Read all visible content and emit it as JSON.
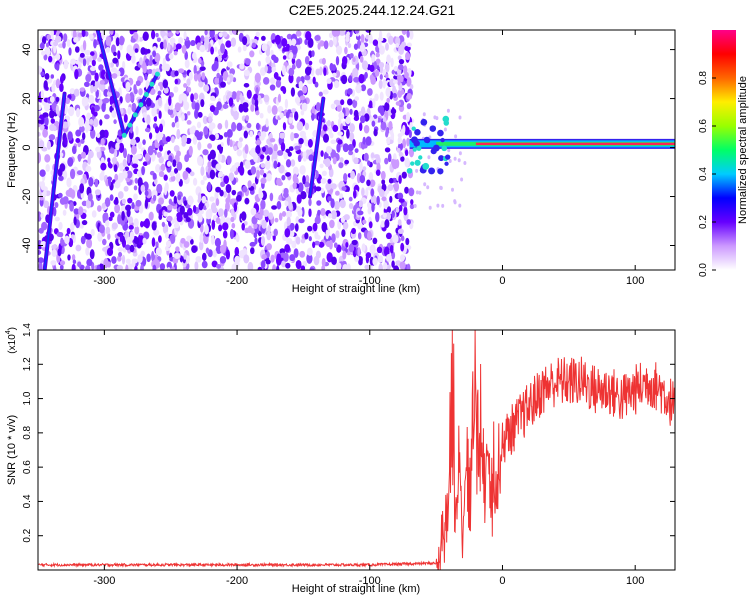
{
  "title": "C2E5.2025.244.12.24.G21",
  "chart_data": [
    {
      "type": "heatmap",
      "title": "C2E5.2025.244.12.24.G21",
      "xlabel": "Height of straight line (km)",
      "ylabel": "Frequency (Hz)",
      "xlim": [
        -350,
        130
      ],
      "ylim": [
        -50,
        48
      ],
      "xticks": [
        -300,
        -200,
        -100,
        0,
        100
      ],
      "yticks": [
        -40,
        -20,
        0,
        20,
        40
      ],
      "colorbar": {
        "label": "Normalized spectral amplitude",
        "range": [
          0,
          1
        ],
        "ticks": [
          "0.0",
          "0.2",
          "0.4",
          "0.6",
          "0.8"
        ],
        "colors": [
          "#ffffff",
          "#cc99ff",
          "#6600ff",
          "#0000ff",
          "#00ccff",
          "#00ff66",
          "#99ff00",
          "#ffee00",
          "#ff6600",
          "#ff0000",
          "#ff0088"
        ]
      },
      "features": [
        {
          "name": "broadband-noise",
          "x_range": [
            -350,
            -68
          ],
          "freq_range": [
            -50,
            48
          ],
          "amplitude": 0.15
        },
        {
          "name": "trace-1",
          "x": [
            -345,
            -330
          ],
          "freq": [
            -50,
            22
          ],
          "amplitude": 0.25
        },
        {
          "name": "trace-2",
          "x": [
            -305,
            -285
          ],
          "freq": [
            48,
            5
          ],
          "amplitude": 0.3
        },
        {
          "name": "trace-3",
          "x": [
            -285,
            -260
          ],
          "freq": [
            5,
            30
          ],
          "amplitude": 0.4
        },
        {
          "name": "trace-4",
          "x": [
            -145,
            -135
          ],
          "freq": [
            -20,
            20
          ],
          "amplitude": 0.2
        },
        {
          "name": "carrier-line",
          "x_range": [
            -70,
            130
          ],
          "freq": 1.5,
          "amplitude": 0.95
        }
      ]
    },
    {
      "type": "line",
      "xlabel": "Height of straight line (km)",
      "ylabel": "SNR (10 * v/v)",
      "yscale_label": "(x10",
      "yscale_exp": "4",
      "yscale_close": ")",
      "xlim": [
        -350,
        130
      ],
      "ylim": [
        0,
        1.4
      ],
      "xticks": [
        -300,
        -200,
        -100,
        0,
        100
      ],
      "yticks": [
        "0.2",
        "0.4",
        "0.6",
        "0.8",
        "1.0",
        "1.2",
        "1.4"
      ],
      "series": [
        {
          "name": "SNR",
          "color": "#ee3333",
          "x": [
            -350,
            -300,
            -200,
            -100,
            -50,
            -45,
            -40,
            -38,
            -35,
            -32,
            -30,
            -27,
            -25,
            -22,
            -20,
            -18,
            -15,
            -12,
            -10,
            -5,
            0,
            10,
            20,
            30,
            40,
            50,
            60,
            70,
            80,
            90,
            100,
            110,
            120,
            130
          ],
          "values": [
            0.03,
            0.03,
            0.03,
            0.03,
            0.04,
            0.15,
            0.5,
            1.3,
            0.3,
            0.6,
            0.15,
            0.8,
            0.3,
            0.9,
            1.4,
            0.5,
            0.9,
            0.5,
            0.6,
            0.6,
            0.75,
            0.85,
            0.95,
            1.05,
            1.1,
            1.1,
            1.1,
            1.05,
            1.05,
            1.0,
            1.05,
            1.1,
            1.05,
            0.95
          ]
        }
      ]
    }
  ]
}
